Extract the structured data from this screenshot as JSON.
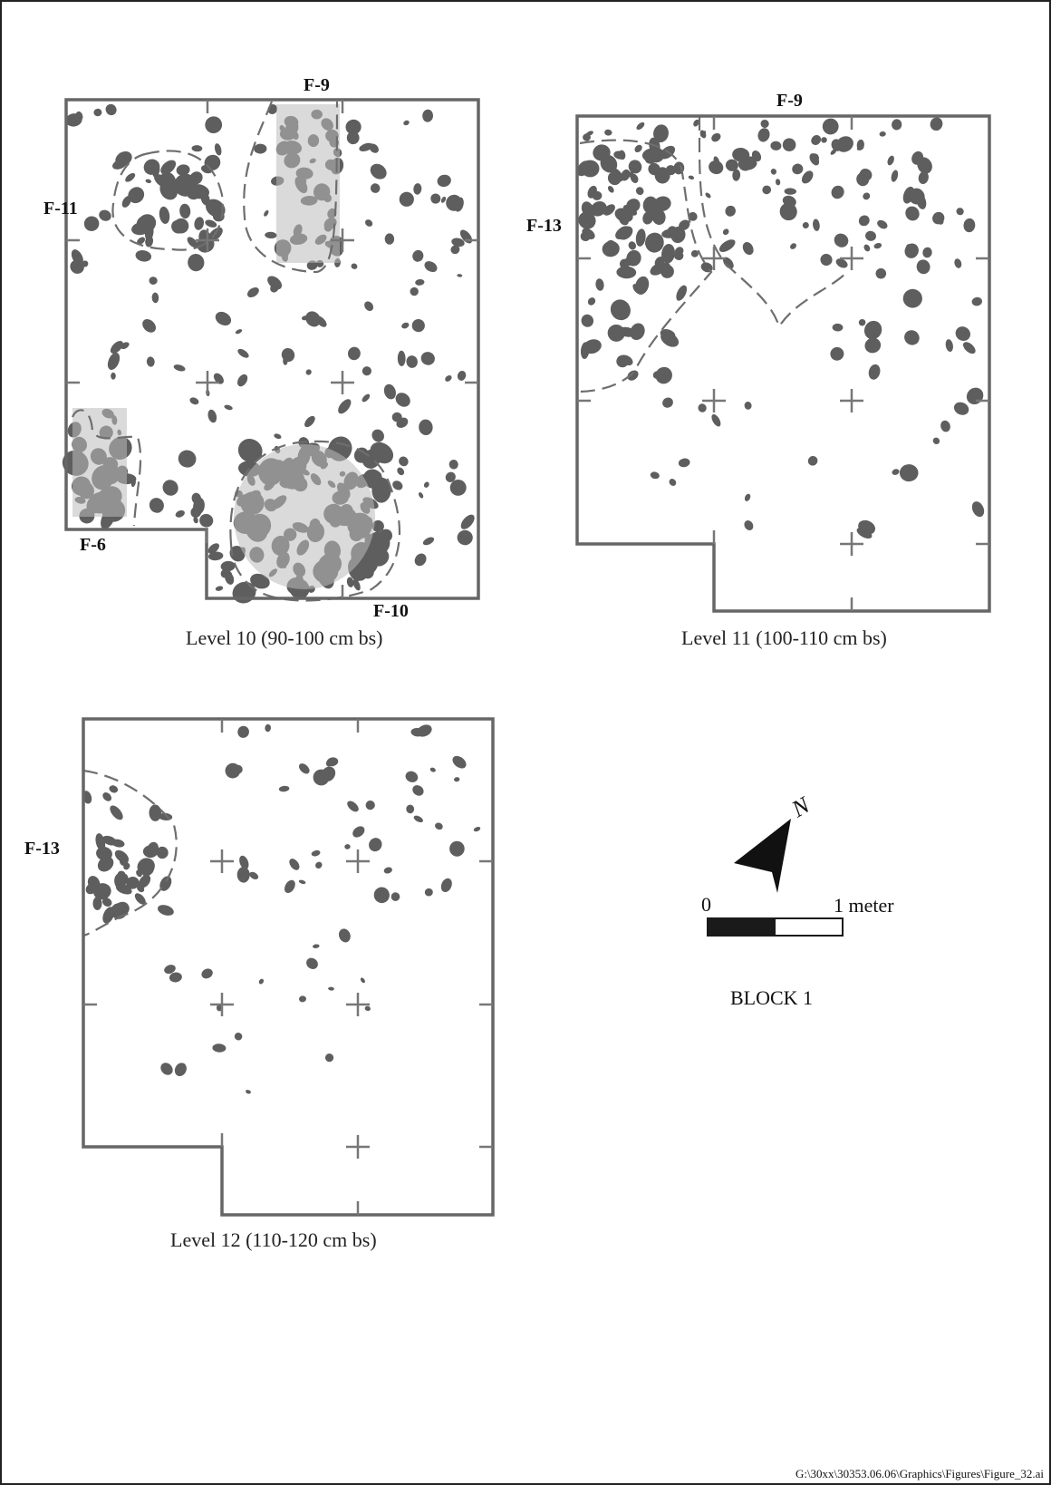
{
  "plans": [
    {
      "id": "level-10",
      "caption": "Level 10 (90-100 cm bs)",
      "features": [
        "F-9",
        "F-11",
        "F-6",
        "F-10"
      ]
    },
    {
      "id": "level-11",
      "caption": "Level 11 (100-110 cm bs)",
      "features": [
        "F-9",
        "F-13"
      ]
    },
    {
      "id": "level-12",
      "caption": "Level 12 (110-120 cm bs)",
      "features": [
        "F-13"
      ]
    }
  ],
  "legend": {
    "north_label": "N",
    "scale_zero": "0",
    "scale_end": "1 meter",
    "block_label": "BLOCK 1"
  },
  "footer": {
    "file_path": "G:\\30xx\\30353.06.06\\Graphics\\Figures\\Figure_32.ai"
  },
  "colors": {
    "outline": "#666666",
    "rock": "#5e5e5e"
  }
}
